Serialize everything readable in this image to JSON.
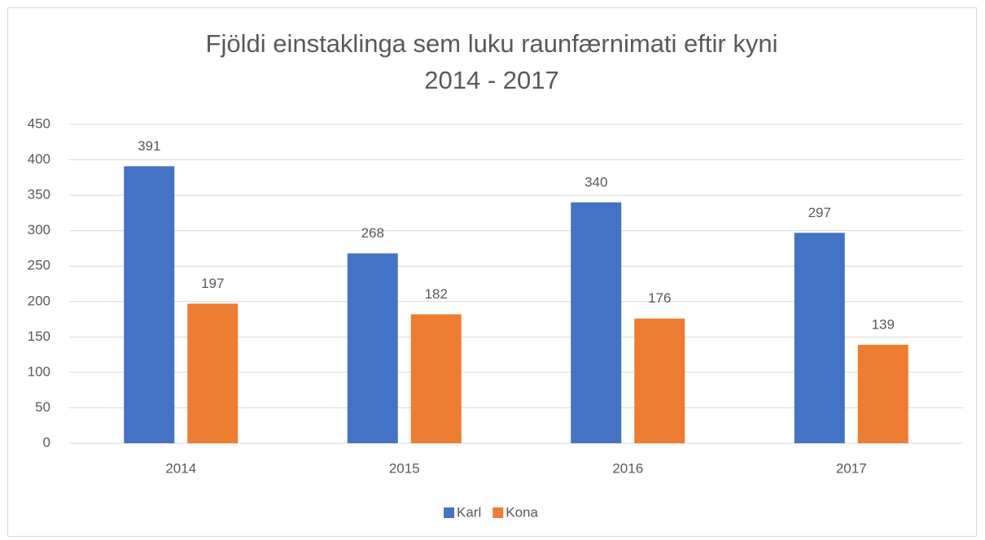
{
  "chart_data": {
    "type": "bar",
    "title": [
      "Fjöldi einstaklinga sem luku raunfærnimati eftir kyni",
      "2014 - 2017"
    ],
    "categories": [
      "2014",
      "2015",
      "2016",
      "2017"
    ],
    "series": [
      {
        "name": "Karl",
        "color": "#4472c4",
        "values": [
          391,
          268,
          340,
          297
        ]
      },
      {
        "name": "Kona",
        "color": "#ed7d31",
        "values": [
          197,
          182,
          176,
          139
        ]
      }
    ],
    "ylim": [
      0,
      450
    ],
    "yticks": [
      0,
      50,
      100,
      150,
      200,
      250,
      300,
      350,
      400,
      450
    ],
    "grid": true,
    "legend": "bottom"
  }
}
